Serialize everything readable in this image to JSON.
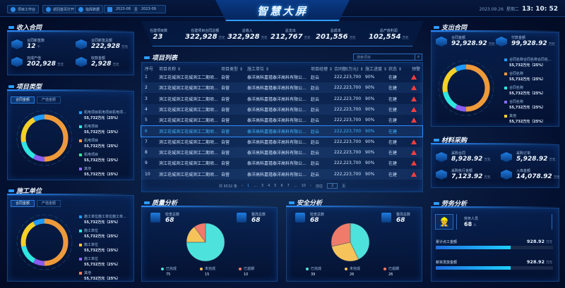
{
  "header": {
    "title": "智慧大屏",
    "nav": [
      {
        "label": "项目工作台",
        "icon": "home-icon"
      },
      {
        "label": "返回首页打开",
        "icon": "link-icon"
      },
      {
        "label": "指挥数据",
        "icon": "cloud-icon"
      }
    ],
    "date_start": "2023-08",
    "date_sep": "至",
    "date_end": "2023-09",
    "date": "2023.09.26",
    "weekday": "星期二",
    "time_h": "13",
    "time_m": "10",
    "time_s": "52"
  },
  "income": {
    "title": "收入合同",
    "items": [
      {
        "label": "合同新签数",
        "value": "12",
        "unit": "个"
      },
      {
        "label": "合同新签总额",
        "value": "222,928",
        "unit": "万元"
      },
      {
        "label": "完成产值",
        "value": "202,928",
        "unit": "万元"
      },
      {
        "label": "收款金额",
        "value": "2,928",
        "unit": "万元"
      }
    ]
  },
  "project_type": {
    "title": "项目类型",
    "tabs": [
      "合同金额",
      "产值金额"
    ],
    "active_tab": 0,
    "legend": [
      {
        "name": "机电项目机电项目机电项...",
        "value": "55,732万元（25%）",
        "color": "#1e9bff"
      },
      {
        "name": "机电项目",
        "value": "55,732万元（25%）",
        "color": "#2ee6e0"
      },
      {
        "name": "机电项目",
        "value": "55,732万元（25%）",
        "color": "#f0a040"
      },
      {
        "name": "机电项目",
        "value": "55,732万元（25%）",
        "color": "#3de0a0"
      },
      {
        "name": "其他",
        "value": "55,732万元（25%）",
        "color": "#8a6cff"
      }
    ]
  },
  "builder": {
    "title": "施工单位",
    "tabs": [
      "合同金额",
      "产值金额"
    ],
    "active_tab": 0,
    "legend": [
      {
        "name": "施工单位施工单位施工单...",
        "value": "55,732万元（25%）",
        "color": "#1e9bff"
      },
      {
        "name": "施工单位",
        "value": "55,732万元（25%）",
        "color": "#2ee6e0"
      },
      {
        "name": "施工单位",
        "value": "55,732万元（25%）",
        "color": "#f5d028"
      },
      {
        "name": "施工单位",
        "value": "55,732万元（25%）",
        "color": "#8a6cff"
      },
      {
        "name": "其他",
        "value": "55,732万元（25%）",
        "color": "#ff7a5a"
      }
    ]
  },
  "donut_segments": [
    {
      "color": "#ef9a3a",
      "fraction": 0.5
    },
    {
      "color": "#8a5cf0",
      "fraction": 0.08
    },
    {
      "color": "#2ee6e0",
      "fraction": 0.14
    },
    {
      "color": "#f5d028",
      "fraction": 0.2
    },
    {
      "color": "#1e9bff",
      "fraction": 0.08
    }
  ],
  "summary": [
    {
      "label": "在建项目数",
      "value": "23",
      "unit": ""
    },
    {
      "label": "在建项目合同总额",
      "value": "322,928",
      "unit": "万元"
    },
    {
      "label": "总收入",
      "value": "322,928",
      "unit": "万元"
    },
    {
      "label": "总支出",
      "value": "212,767",
      "unit": "万元"
    },
    {
      "label": "总成本",
      "value": "201,556",
      "unit": "万元"
    },
    {
      "label": "总产值利润",
      "value": "102,554",
      "unit": "万元"
    }
  ],
  "project_list": {
    "title": "项目列表",
    "search_placeholder": "搜索项目",
    "columns": [
      "序号",
      "项目名称 ⇕",
      "项目类型 ⇕",
      "施工单位 ⇕",
      "项目经理 ⇕",
      "合同额(万元) ⇕",
      "施工进度 ⇕",
      "状态 ⇕",
      "预警"
    ],
    "rows": [
      {
        "no": "1",
        "name": "滨江花城滨江花城滨江二期项...",
        "type": "自营",
        "unit": "泰洋高科嘉禧泰洋高科有限公...",
        "manager": "赵云",
        "amount": "222,223,700",
        "progress": "90%",
        "status": "在建",
        "warning": true
      },
      {
        "no": "2",
        "name": "滨江花城滨江花城滨江二期项...",
        "type": "自营",
        "unit": "泰洋高科嘉禧泰洋高科有限公...",
        "manager": "赵云",
        "amount": "222,223,700",
        "progress": "90%",
        "status": "在建",
        "warning": true
      },
      {
        "no": "3",
        "name": "滨江花城滨江花城滨江二期项...",
        "type": "自营",
        "unit": "泰洋高科嘉禧泰洋高科有限公...",
        "manager": "赵云",
        "amount": "222,223,700",
        "progress": "90%",
        "status": "在建",
        "warning": true
      },
      {
        "no": "4",
        "name": "滨江花城滨江花城滨江二期项...",
        "type": "自营",
        "unit": "泰洋高科嘉禧泰洋高科有限公...",
        "manager": "赵云",
        "amount": "222,223,700",
        "progress": "90%",
        "status": "在建",
        "warning": true
      },
      {
        "no": "5",
        "name": "滨江花城滨江花城滨江二期项...",
        "type": "自营",
        "unit": "泰洋高科嘉禧泰洋高科有限公...",
        "manager": "赵云",
        "amount": "222,223,700",
        "progress": "90%",
        "status": "在建",
        "warning": true
      },
      {
        "no": "6",
        "name": "滨江花城滨江花城滨江二期项...",
        "type": "自营",
        "unit": "泰洋高科嘉禧泰洋高科有限公...",
        "manager": "赵云",
        "amount": "222,223,700",
        "progress": "90%",
        "status": "在建",
        "warning": false,
        "selected": true
      },
      {
        "no": "7",
        "name": "滨江花城滨江花城滨江二期项...",
        "type": "自营",
        "unit": "泰洋高科嘉禧泰洋高科有限公...",
        "manager": "赵云",
        "amount": "222,223,700",
        "progress": "90%",
        "status": "在建",
        "warning": true
      },
      {
        "no": "8",
        "name": "滨江花城滨江花城滨江二期项...",
        "type": "自营",
        "unit": "泰洋高科嘉禧泰洋高科有限公...",
        "manager": "赵云",
        "amount": "222,223,700",
        "progress": "90%",
        "status": "在建",
        "warning": true
      },
      {
        "no": "9",
        "name": "滨江花城滨江花城滨江二期项...",
        "type": "自营",
        "unit": "泰洋高科嘉禧泰洋高科有限公...",
        "manager": "赵云",
        "amount": "222,223,700",
        "progress": "90%",
        "status": "在建",
        "warning": true
      },
      {
        "no": "10",
        "name": "滨江花城滨江花城滨江二期项...",
        "type": "自营",
        "unit": "泰洋高科嘉禧泰洋高科有限公...",
        "manager": "赵云",
        "amount": "222,223,700",
        "progress": "90%",
        "status": "在建",
        "warning": true
      }
    ],
    "pagination": {
      "total": "共 6532 条",
      "prev": "‹",
      "pages": [
        "1",
        "...",
        "3",
        "4",
        "5",
        "6",
        "7",
        "...",
        "10"
      ],
      "current": "1",
      "next": "›",
      "goto_label": "前往",
      "goto_value": "2",
      "page_suffix": "页"
    }
  },
  "quality": {
    "title": "质量分析",
    "check_label": "检查总数",
    "check_value": "68",
    "fix_label": "整改总数",
    "fix_value": "68",
    "pie": [
      {
        "name": "已完成",
        "value": 75,
        "color": "#4de3dc"
      },
      {
        "name": "未完成",
        "value": 15,
        "color": "#f5c35a"
      },
      {
        "name": "已逾期",
        "value": 10,
        "color": "#f07b6a"
      }
    ]
  },
  "safety": {
    "title": "安全分析",
    "check_label": "检查总数",
    "check_value": "68",
    "fix_label": "整改总数",
    "fix_value": "68",
    "pie": [
      {
        "name": "已完成",
        "value": 39,
        "color": "#4de3dc"
      },
      {
        "name": "未完成",
        "value": 26,
        "color": "#f5c35a"
      },
      {
        "name": "已逾期",
        "value": 26,
        "color": "#f07b6a"
      }
    ]
  },
  "expense": {
    "title": "支出合同",
    "items": [
      {
        "label": "合同金额",
        "value": "92,928.92",
        "unit": "万元"
      },
      {
        "label": "付款金额",
        "value": "99,928.92",
        "unit": "万元"
      }
    ],
    "legend": [
      {
        "name": "合同名称合同名称合同名...",
        "value": "55,732万元（25%）",
        "color": "#1e9bff"
      },
      {
        "name": "合同名称",
        "value": "55,732万元（25%）",
        "color": "#ef9a3a"
      },
      {
        "name": "合同名称",
        "value": "55,732万元（25%）",
        "color": "#2ee6e0"
      },
      {
        "name": "合同名称",
        "value": "55,732万元（25%）",
        "color": "#8a6cff"
      },
      {
        "name": "其他",
        "value": "55,732万元（25%）",
        "color": "#f5d028"
      }
    ]
  },
  "material": {
    "title": "材料采购",
    "items": [
      {
        "label": "采购合同",
        "value": "8,928.92",
        "unit": "万元"
      },
      {
        "label": "采购订单",
        "value": "5,928.92",
        "unit": "万元"
      },
      {
        "label": "采购执行金额",
        "value": "7,123.92",
        "unit": "万元"
      },
      {
        "label": "入库金额",
        "value": "14,078.92",
        "unit": "万元"
      }
    ]
  },
  "labor": {
    "title": "劳务分析",
    "people_label": "劳务人员",
    "people_value": "68",
    "people_unit": "人",
    "bars": [
      {
        "label": "累计点工金额",
        "value": "928.92",
        "unit": "万元",
        "fill": 0.64
      },
      {
        "label": "薪资发放金额",
        "value": "928.92",
        "unit": "万元",
        "fill": 0.64
      }
    ]
  }
}
